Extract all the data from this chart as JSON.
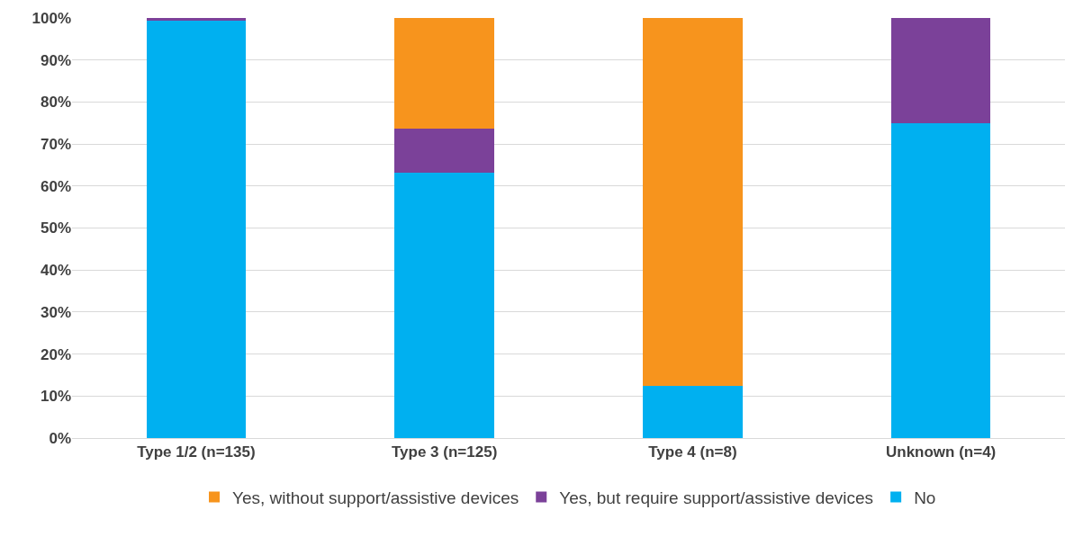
{
  "chart_data": {
    "type": "bar",
    "stacked": true,
    "categories": [
      "Type 1/2 (n=135)",
      "Type 3 (n=125)",
      "Type 4 (n=8)",
      "Unknown (n=4)"
    ],
    "series": [
      {
        "name": "No",
        "color": "#00b0f0",
        "values": [
          99.3,
          63.2,
          12.5,
          75
        ]
      },
      {
        "name": "Yes, but require support/assistive devices",
        "color": "#7b4199",
        "values": [
          0.7,
          10.4,
          0,
          25
        ]
      },
      {
        "name": "Yes, without support/assistive devices",
        "color": "#f7941d",
        "values": [
          0,
          26.4,
          87.5,
          0
        ]
      }
    ],
    "ylim": [
      0,
      100
    ],
    "yticks": [
      {
        "value": 0,
        "label": "0%"
      },
      {
        "value": 10,
        "label": "10%"
      },
      {
        "value": 20,
        "label": "20%"
      },
      {
        "value": 30,
        "label": "30%"
      },
      {
        "value": 40,
        "label": "40%"
      },
      {
        "value": 50,
        "label": "50%"
      },
      {
        "value": 60,
        "label": "60%"
      },
      {
        "value": 70,
        "label": "70%"
      },
      {
        "value": 80,
        "label": "80%"
      },
      {
        "value": 90,
        "label": "90%"
      },
      {
        "value": 100,
        "label": "100%"
      }
    ],
    "grid": "y",
    "legend": "bottom"
  }
}
